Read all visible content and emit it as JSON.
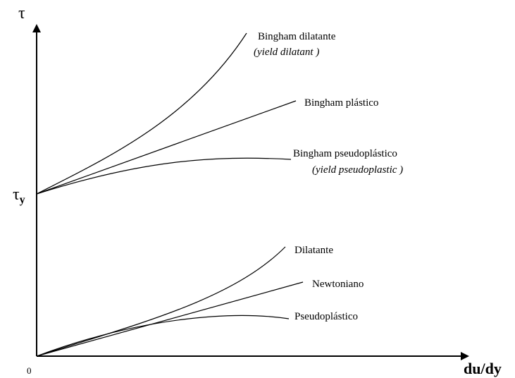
{
  "axes": {
    "y_label": "τ",
    "x_label": "du/dy",
    "origin": "0",
    "yield_stress": {
      "symbol": "τ",
      "subscript": "y"
    }
  },
  "curves": [
    {
      "label": "Bingham dilatante",
      "note": "(yield dilatant )"
    },
    {
      "label": "Bingham plástico"
    },
    {
      "label": "Bingham pseudoplástico",
      "note": "(yield pseudoplastic )"
    },
    {
      "label": "Dilatante"
    },
    {
      "label": "Newtoniano"
    },
    {
      "label": "Pseudoplástico"
    }
  ]
}
